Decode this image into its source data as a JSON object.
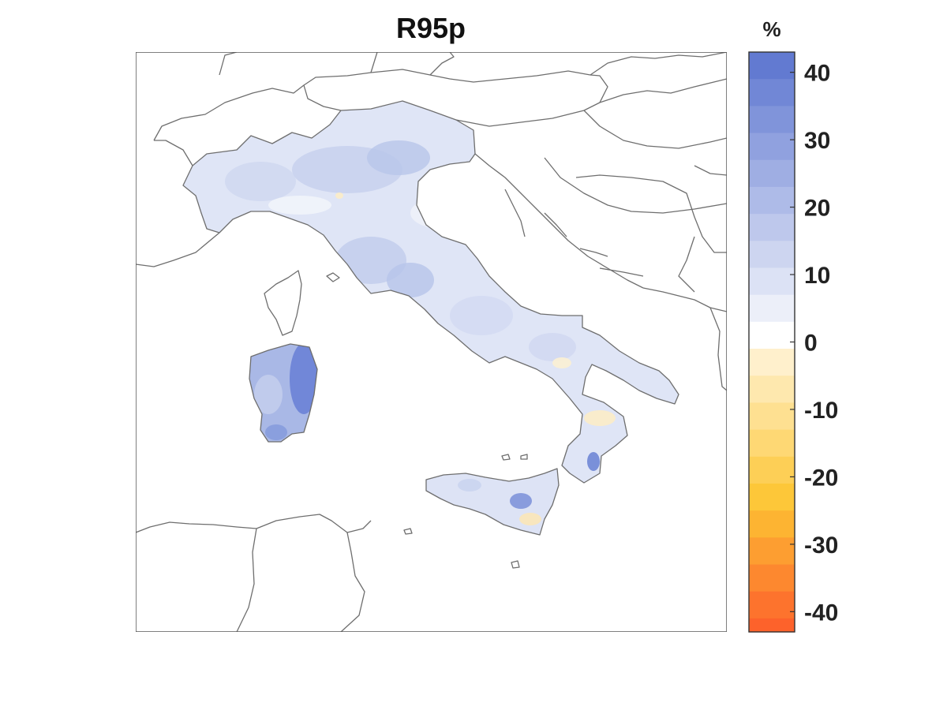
{
  "map": {
    "title": "R95p",
    "frame_color": "#555555",
    "border_color": "#6e6e6e"
  },
  "colorbar": {
    "unit": "%",
    "range": [
      -43,
      43
    ],
    "ticks": [
      40,
      30,
      20,
      10,
      0,
      -10,
      -20,
      -30,
      -40
    ],
    "tick_labels": [
      "40",
      "30",
      "20",
      "10",
      "0",
      "-10",
      "-20",
      "-30",
      "-40"
    ],
    "positive_color": "#5a73cf",
    "neutral_color": "#ffffff",
    "negative_color": "#fd5d2b"
  },
  "chart_data": {
    "type": "heatmap",
    "title": "R95p",
    "unit": "%",
    "value_range": [
      -43,
      43
    ],
    "regions": [
      {
        "name": "Sardinia east",
        "value": 30
      },
      {
        "name": "Sardinia west",
        "value": 16
      },
      {
        "name": "Po Valley / Alps",
        "value": 10
      },
      {
        "name": "Central Apennines",
        "value": 12
      },
      {
        "name": "Puglia",
        "value": 6
      },
      {
        "name": "Calabria",
        "value": 5
      },
      {
        "name": "Sicily",
        "value": 6
      }
    ]
  }
}
